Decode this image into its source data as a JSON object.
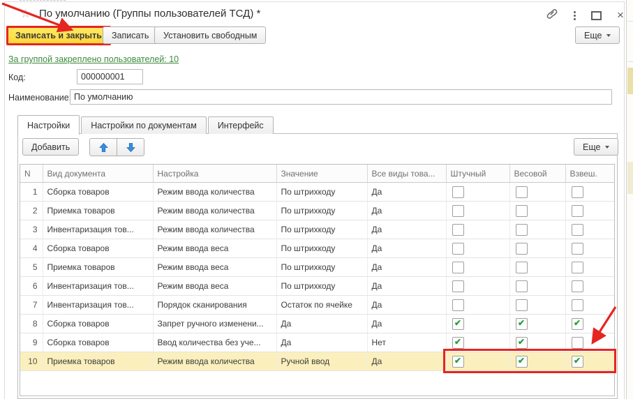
{
  "window": {
    "title": "По умолчанию (Группы пользователей ТСД) *"
  },
  "command_bar": {
    "save_close": "Записать и закрыть",
    "save": "Записать",
    "set_free": "Установить свободным",
    "more": "Еще"
  },
  "users_link": "За группой закреплено пользователей: 10",
  "fields": {
    "code_label": "Код:",
    "code_value": "000000001",
    "name_label": "Наименование:",
    "name_value": "По умолчанию"
  },
  "tabs": [
    {
      "label": "Настройки",
      "active": true
    },
    {
      "label": "Настройки по документам",
      "active": false
    },
    {
      "label": "Интерфейс",
      "active": false
    }
  ],
  "table": {
    "toolbar": {
      "add": "Добавить",
      "more": "Еще"
    },
    "headers": [
      "N",
      "Вид документа",
      "Настройка",
      "Значение",
      "Все виды това...",
      "Штучный",
      "Весовой",
      "Взвеш."
    ],
    "rows": [
      {
        "n": 1,
        "doc": "Сборка товаров",
        "setting": "Режим ввода количества",
        "value": "По штрихкоду",
        "all": "Да",
        "unit": false,
        "weight": false,
        "weighed": false
      },
      {
        "n": 2,
        "doc": "Приемка товаров",
        "setting": "Режим ввода количества",
        "value": "По штрихкоду",
        "all": "Да",
        "unit": false,
        "weight": false,
        "weighed": false
      },
      {
        "n": 3,
        "doc": "Инвентаризация тов...",
        "setting": "Режим ввода количества",
        "value": "По штрихкоду",
        "all": "Да",
        "unit": false,
        "weight": false,
        "weighed": false
      },
      {
        "n": 4,
        "doc": "Сборка товаров",
        "setting": "Режим ввода веса",
        "value": "По штрихкоду",
        "all": "Да",
        "unit": false,
        "weight": false,
        "weighed": false
      },
      {
        "n": 5,
        "doc": "Приемка товаров",
        "setting": "Режим ввода веса",
        "value": "По штрихкоду",
        "all": "Да",
        "unit": false,
        "weight": false,
        "weighed": false
      },
      {
        "n": 6,
        "doc": "Инвентаризация тов...",
        "setting": "Режим ввода веса",
        "value": "По штрихкоду",
        "all": "Да",
        "unit": false,
        "weight": false,
        "weighed": false
      },
      {
        "n": 7,
        "doc": "Инвентаризация тов...",
        "setting": "Порядок сканирования",
        "value": "Остаток по ячейке",
        "all": "Да",
        "unit": false,
        "weight": false,
        "weighed": false
      },
      {
        "n": 8,
        "doc": "Сборка товаров",
        "setting": "Запрет ручного изменени...",
        "value": "Да",
        "all": "Да",
        "unit": true,
        "weight": true,
        "weighed": true
      },
      {
        "n": 9,
        "doc": "Сборка товаров",
        "setting": "Ввод количества без уче...",
        "value": "Да",
        "all": "Нет",
        "unit": true,
        "weight": true,
        "weighed": false
      },
      {
        "n": 10,
        "doc": "Приемка товаров",
        "setting": "Режим ввода количества",
        "value": "Ручной ввод",
        "all": "Да",
        "unit": true,
        "weight": true,
        "weighed": true,
        "highlighted": true,
        "focused_col": "weighed"
      }
    ]
  },
  "icons": {
    "check_mark": "✔",
    "close_glyph": "×",
    "star_glyph": "☆"
  },
  "colors": {
    "annotation_red": "#e52620",
    "accent_yellow": "#ffd83a",
    "row_highlight": "#fbf0bd",
    "focused_cell": "#fbd55e",
    "check_green": "#21a038",
    "link_green": "#3d8b3d",
    "arrow_blue": "#3b8ede"
  }
}
